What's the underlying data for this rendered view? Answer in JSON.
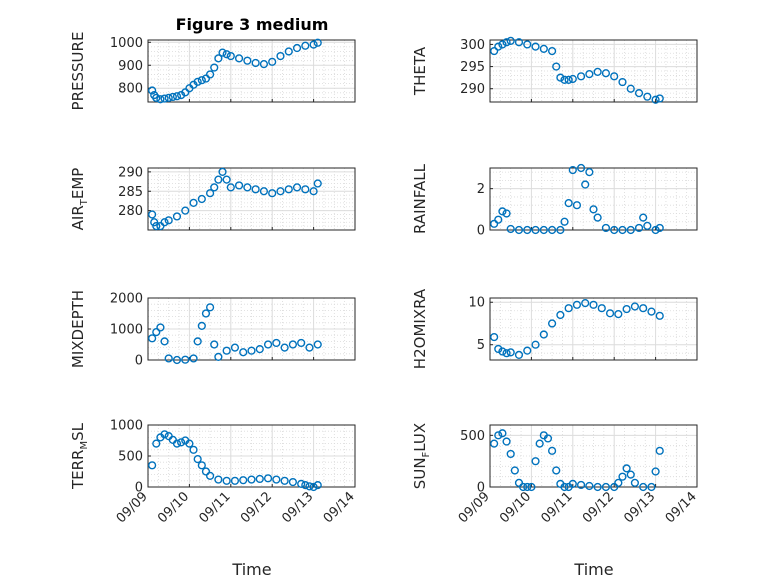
{
  "figure": {
    "title": "Figure 3 medium",
    "xlabel": "Time",
    "xticks": [
      "09/09",
      "09/10",
      "09/11",
      "09/12",
      "09/13",
      "09/14"
    ],
    "marker_color": "#0072BD",
    "grid": "on"
  },
  "chart_data": [
    {
      "type": "scatter",
      "title": "Figure 3 medium",
      "ylabel": "PRESSURE",
      "xlabel": "",
      "xlim": [
        "09/09",
        "09/14"
      ],
      "ylim": [
        740,
        1010
      ],
      "yticks": [
        800,
        900,
        1000
      ],
      "x_days": [
        0.1,
        0.15,
        0.2,
        0.3,
        0.4,
        0.5,
        0.6,
        0.7,
        0.8,
        0.9,
        1.0,
        1.1,
        1.2,
        1.3,
        1.4,
        1.5,
        1.6,
        1.7,
        1.8,
        1.9,
        2.0,
        2.2,
        2.4,
        2.6,
        2.8,
        3.0,
        3.2,
        3.4,
        3.6,
        3.8,
        4.0,
        4.1
      ],
      "x": [
        "09/09 02:24",
        "09/09 03:36",
        "09/09 04:48",
        "09/09 07:12",
        "09/09 09:36",
        "09/09 12:00",
        "09/09 14:24",
        "09/09 16:48",
        "09/09 19:12",
        "09/09 21:36",
        "09/10 00:00",
        "09/10 02:24",
        "09/10 04:48",
        "09/10 07:12",
        "09/10 09:36",
        "09/10 12:00",
        "09/10 14:24",
        "09/10 16:48",
        "09/10 19:12",
        "09/10 21:36",
        "09/11 00:00",
        "09/11 04:48",
        "09/11 09:36",
        "09/11 14:24",
        "09/11 19:12",
        "09/12 00:00",
        "09/12 04:48",
        "09/12 09:36",
        "09/12 14:24",
        "09/12 19:12",
        "09/13 00:00",
        "09/13 02:24"
      ],
      "y": [
        790,
        770,
        758,
        752,
        755,
        758,
        762,
        765,
        770,
        782,
        800,
        815,
        828,
        835,
        842,
        860,
        890,
        930,
        955,
        948,
        940,
        930,
        920,
        910,
        905,
        915,
        940,
        960,
        975,
        985,
        990,
        998
      ]
    },
    {
      "type": "scatter",
      "ylabel": "THETA",
      "xlabel": "",
      "xlim": [
        "09/09",
        "09/14"
      ],
      "ylim": [
        287,
        301
      ],
      "yticks": [
        290,
        295,
        300
      ],
      "x": [
        "09/09 02:24",
        "09/09 04:48",
        "09/09 07:12",
        "09/09 09:36",
        "09/09 12:00",
        "09/09 16:48",
        "09/09 21:36",
        "09/10 02:24",
        "09/10 07:12",
        "09/10 12:00",
        "09/10 14:24",
        "09/10 16:48",
        "09/10 19:12",
        "09/10 21:36",
        "09/11 00:00",
        "09/11 04:48",
        "09/11 09:36",
        "09/11 14:24",
        "09/11 19:12",
        "09/12 00:00",
        "09/12 04:48",
        "09/12 09:36",
        "09/12 14:24",
        "09/12 19:12",
        "09/13 00:00",
        "09/13 02:24"
      ],
      "y": [
        298.5,
        299.5,
        300,
        300.5,
        300.8,
        300.5,
        300,
        299.5,
        299,
        298.5,
        295,
        292.5,
        292,
        292,
        292.2,
        292.8,
        293.3,
        293.8,
        293.5,
        292.8,
        291.5,
        290,
        289,
        288.2,
        287.5,
        287.8
      ]
    },
    {
      "type": "scatter",
      "ylabel": "AIR_TEMP",
      "xlabel": "",
      "xlim": [
        "09/09",
        "09/14"
      ],
      "ylim": [
        275,
        291
      ],
      "yticks": [
        280,
        285,
        290
      ],
      "x": [
        "09/09 02:24",
        "09/09 03:36",
        "09/09 04:48",
        "09/09 07:12",
        "09/09 09:36",
        "09/09 12:00",
        "09/09 16:48",
        "09/09 21:36",
        "09/10 02:24",
        "09/10 07:12",
        "09/10 12:00",
        "09/10 14:24",
        "09/10 16:48",
        "09/10 19:12",
        "09/10 21:36",
        "09/11 00:00",
        "09/11 04:48",
        "09/11 09:36",
        "09/11 14:24",
        "09/11 19:12",
        "09/12 00:00",
        "09/12 04:48",
        "09/12 09:36",
        "09/12 14:24",
        "09/12 19:12",
        "09/13 00:00",
        "09/13 02:24"
      ],
      "y": [
        279,
        277,
        276,
        276,
        277,
        277.5,
        278.5,
        280,
        282,
        283,
        284.5,
        286,
        288,
        290,
        288,
        286,
        286.5,
        286,
        285.5,
        285,
        284.5,
        285,
        285.5,
        286,
        285.5,
        285,
        287
      ]
    },
    {
      "type": "scatter",
      "ylabel": "RAINFALL",
      "xlabel": "",
      "xlim": [
        "09/09",
        "09/14"
      ],
      "ylim": [
        0,
        3
      ],
      "yticks": [
        0,
        2
      ],
      "x": [
        "09/09 02:24",
        "09/09 04:48",
        "09/09 07:12",
        "09/09 09:36",
        "09/09 12:00",
        "09/09 16:48",
        "09/09 21:36",
        "09/10 02:24",
        "09/10 07:12",
        "09/10 12:00",
        "09/10 16:48",
        "09/10 19:12",
        "09/10 21:36",
        "09/11 00:00",
        "09/11 02:24",
        "09/11 04:48",
        "09/11 07:12",
        "09/11 09:36",
        "09/11 12:00",
        "09/11 14:24",
        "09/11 19:12",
        "09/12 00:00",
        "09/12 04:48",
        "09/12 09:36",
        "09/12 14:24",
        "09/12 16:48",
        "09/12 19:12",
        "09/13 00:00",
        "09/13 02:24"
      ],
      "y": [
        0.3,
        0.5,
        0.9,
        0.8,
        0.05,
        0.0,
        0.0,
        0.0,
        0.0,
        0.0,
        0.0,
        0.4,
        1.3,
        2.9,
        1.2,
        3.0,
        2.2,
        2.8,
        1.0,
        0.6,
        0.1,
        0.0,
        0.0,
        0.0,
        0.1,
        0.6,
        0.2,
        0.0,
        0.1
      ]
    },
    {
      "type": "scatter",
      "ylabel": "MIXDEPTH",
      "xlabel": "",
      "xlim": [
        "09/09",
        "09/14"
      ],
      "ylim": [
        0,
        2000
      ],
      "yticks": [
        0,
        1000,
        2000
      ],
      "x": [
        "09/09 02:24",
        "09/09 04:48",
        "09/09 07:12",
        "09/09 09:36",
        "09/09 12:00",
        "09/09 16:48",
        "09/09 21:36",
        "09/10 02:24",
        "09/10 04:48",
        "09/10 07:12",
        "09/10 09:36",
        "09/10 12:00",
        "09/10 14:24",
        "09/10 16:48",
        "09/10 21:36",
        "09/11 02:24",
        "09/11 07:12",
        "09/11 12:00",
        "09/11 16:48",
        "09/11 21:36",
        "09/12 02:24",
        "09/12 07:12",
        "09/12 12:00",
        "09/12 16:48",
        "09/12 21:36",
        "09/13 02:24"
      ],
      "y": [
        700,
        900,
        1050,
        600,
        50,
        0,
        10,
        50,
        600,
        1100,
        1500,
        1700,
        500,
        100,
        300,
        400,
        250,
        300,
        350,
        500,
        550,
        400,
        500,
        550,
        400,
        500
      ]
    },
    {
      "type": "scatter",
      "ylabel": "H2OMIXRA",
      "xlabel": "",
      "xlim": [
        "09/09",
        "09/14"
      ],
      "ylim": [
        3.2,
        10.5
      ],
      "yticks": [
        5,
        10
      ],
      "x": [
        "09/09 02:24",
        "09/09 04:48",
        "09/09 07:12",
        "09/09 09:36",
        "09/09 12:00",
        "09/09 16:48",
        "09/09 21:36",
        "09/10 02:24",
        "09/10 07:12",
        "09/10 12:00",
        "09/10 16:48",
        "09/10 21:36",
        "09/11 02:24",
        "09/11 07:12",
        "09/11 12:00",
        "09/11 16:48",
        "09/11 21:36",
        "09/12 02:24",
        "09/12 07:12",
        "09/12 12:00",
        "09/12 16:48",
        "09/12 21:36",
        "09/13 02:24"
      ],
      "y": [
        5.9,
        4.5,
        4.2,
        4.0,
        4.1,
        3.8,
        4.3,
        5.0,
        6.2,
        7.5,
        8.5,
        9.3,
        9.7,
        9.9,
        9.7,
        9.3,
        8.7,
        8.6,
        9.2,
        9.5,
        9.3,
        8.9,
        8.4
      ]
    },
    {
      "type": "scatter",
      "ylabel": "TERR_MSL",
      "xlabel": "Time",
      "xlim": [
        "09/09",
        "09/14"
      ],
      "ylim": [
        0,
        1000
      ],
      "yticks": [
        0,
        500,
        1000
      ],
      "x": [
        "09/09 02:24",
        "09/09 04:48",
        "09/09 07:12",
        "09/09 09:36",
        "09/09 12:00",
        "09/09 14:24",
        "09/09 16:48",
        "09/09 19:12",
        "09/09 21:36",
        "09/10 00:00",
        "09/10 02:24",
        "09/10 04:48",
        "09/10 07:12",
        "09/10 09:36",
        "09/10 12:00",
        "09/10 16:48",
        "09/10 21:36",
        "09/11 02:24",
        "09/11 07:12",
        "09/11 12:00",
        "09/11 16:48",
        "09/11 21:36",
        "09/12 02:24",
        "09/12 07:12",
        "09/12 12:00",
        "09/12 16:48",
        "09/12 19:12",
        "09/12 21:36",
        "09/13 00:00",
        "09/13 02:24"
      ],
      "y": [
        350,
        700,
        800,
        850,
        820,
        760,
        700,
        720,
        750,
        700,
        600,
        450,
        350,
        250,
        180,
        120,
        100,
        100,
        110,
        120,
        130,
        140,
        120,
        100,
        80,
        50,
        30,
        10,
        0,
        30
      ]
    },
    {
      "type": "scatter",
      "ylabel": "SUN_FLUX",
      "xlabel": "Time",
      "xlim": [
        "09/09",
        "09/14"
      ],
      "ylim": [
        0,
        600
      ],
      "yticks": [
        0,
        500
      ],
      "x": [
        "09/09 02:24",
        "09/09 04:48",
        "09/09 07:12",
        "09/09 09:36",
        "09/09 12:00",
        "09/09 14:24",
        "09/09 16:48",
        "09/09 19:12",
        "09/09 21:36",
        "09/10 00:00",
        "09/10 02:24",
        "09/10 04:48",
        "09/10 07:12",
        "09/10 09:36",
        "09/10 12:00",
        "09/10 14:24",
        "09/10 16:48",
        "09/10 19:12",
        "09/10 21:36",
        "09/11 00:00",
        "09/11 04:48",
        "09/11 09:36",
        "09/11 14:24",
        "09/11 19:12",
        "09/12 00:00",
        "09/12 02:24",
        "09/12 04:48",
        "09/12 07:12",
        "09/12 09:36",
        "09/12 12:00",
        "09/12 16:48",
        "09/12 21:36",
        "09/13 00:00",
        "09/13 02:24"
      ],
      "y": [
        420,
        500,
        520,
        440,
        320,
        160,
        40,
        0,
        0,
        0,
        250,
        420,
        500,
        470,
        350,
        160,
        30,
        0,
        0,
        30,
        20,
        10,
        0,
        0,
        0,
        40,
        100,
        180,
        120,
        40,
        0,
        0,
        150,
        350
      ]
    }
  ]
}
